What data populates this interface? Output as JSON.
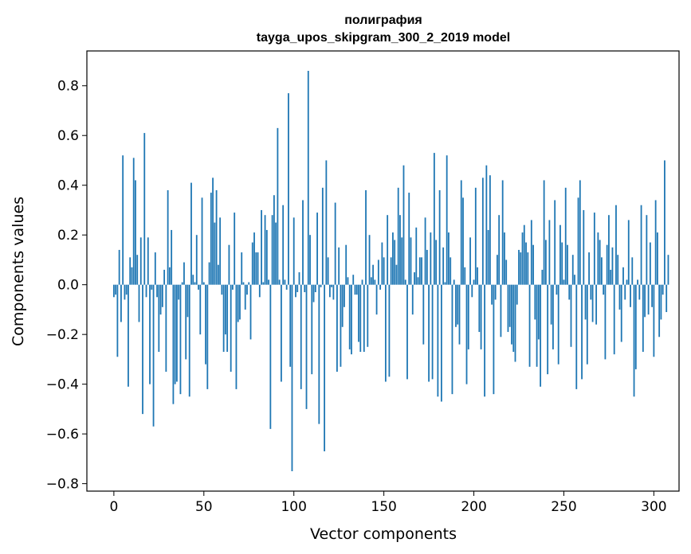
{
  "chart_data": {
    "type": "bar",
    "title_line1": "полиграфия",
    "title_line2": "tayga_upos_skipgram_300_2_2019 model",
    "xlabel": "Vector components",
    "ylabel": "Components values",
    "xlim": [
      -15,
      314
    ],
    "ylim": [
      -0.83,
      0.94
    ],
    "xticks": [
      0,
      50,
      100,
      150,
      200,
      250,
      300
    ],
    "xtick_labels": [
      "0",
      "50",
      "100",
      "150",
      "200",
      "250",
      "300"
    ],
    "yticks": [
      0.8,
      0.6,
      0.4,
      0.2,
      0.0,
      -0.2,
      -0.4,
      -0.6,
      -0.8
    ],
    "ytick_labels": [
      "0.8",
      "0.6",
      "0.4",
      "0.2",
      "0.0",
      "−0.2",
      "−0.4",
      "−0.6",
      "−0.8"
    ],
    "bar_color": "#1f77b4",
    "grid": false,
    "values": [
      -0.05,
      -0.04,
      -0.29,
      0.14,
      -0.15,
      0.52,
      -0.06,
      -0.04,
      -0.41,
      0.11,
      0.07,
      0.51,
      0.42,
      0.12,
      -0.15,
      0.19,
      -0.52,
      0.61,
      -0.05,
      0.19,
      -0.4,
      -0.02,
      -0.57,
      0.13,
      -0.05,
      -0.27,
      -0.12,
      -0.09,
      0.06,
      -0.35,
      0.38,
      0.07,
      0.22,
      -0.48,
      -0.4,
      -0.39,
      -0.06,
      -0.44,
      0.01,
      0.09,
      -0.3,
      -0.13,
      -0.45,
      0.41,
      0.04,
      0.01,
      0.2,
      -0.02,
      -0.2,
      0.35,
      0.01,
      -0.32,
      -0.42,
      0.09,
      0.37,
      0.43,
      0.25,
      0.38,
      0.08,
      0.27,
      -0.04,
      -0.27,
      -0.2,
      -0.27,
      0.16,
      -0.35,
      -0.02,
      0.29,
      -0.42,
      -0.15,
      -0.14,
      0.13,
      0.01,
      -0.1,
      -0.04,
      0.01,
      -0.22,
      0.17,
      0.21,
      0.13,
      0.13,
      -0.05,
      0.3,
      0.01,
      0.28,
      0.22,
      0.02,
      -0.58,
      0.28,
      0.36,
      0.25,
      0.63,
      0.02,
      -0.39,
      0.32,
      0.02,
      -0.02,
      0.77,
      -0.33,
      -0.75,
      0.27,
      -0.05,
      -0.03,
      0.05,
      -0.42,
      0.34,
      -0.03,
      -0.5,
      0.86,
      0.2,
      -0.36,
      -0.07,
      -0.03,
      0.29,
      -0.56,
      -0.01,
      0.39,
      -0.67,
      0.5,
      0.11,
      -0.05,
      -0.01,
      -0.06,
      0.33,
      -0.35,
      0.15,
      -0.33,
      -0.17,
      -0.09,
      0.16,
      0.03,
      -0.26,
      -0.28,
      0.04,
      -0.04,
      -0.04,
      -0.23,
      -0.27,
      0.02,
      -0.27,
      0.38,
      -0.25,
      0.2,
      0.03,
      0.08,
      0.02,
      -0.12,
      0.1,
      -0.02,
      0.17,
      0.11,
      -0.39,
      0.28,
      -0.37,
      0.11,
      0.21,
      0.18,
      0.08,
      0.39,
      0.28,
      0.19,
      0.48,
      0.02,
      -0.38,
      0.37,
      0.19,
      -0.12,
      0.05,
      0.23,
      0.03,
      0.11,
      0.11,
      -0.24,
      0.27,
      0.14,
      -0.39,
      0.21,
      -0.38,
      0.53,
      0.18,
      -0.45,
      0.38,
      -0.47,
      0.15,
      0.01,
      0.52,
      0.21,
      0.11,
      -0.44,
      0.02,
      -0.17,
      -0.16,
      -0.24,
      0.42,
      0.35,
      0.07,
      -0.4,
      -0.26,
      0.19,
      -0.05,
      0.02,
      0.39,
      0.07,
      -0.19,
      -0.26,
      0.43,
      -0.45,
      0.48,
      0.22,
      0.44,
      -0.08,
      -0.44,
      -0.06,
      0.12,
      0.28,
      -0.21,
      0.42,
      0.21,
      0.1,
      -0.19,
      -0.17,
      -0.24,
      -0.27,
      -0.31,
      -0.08,
      0.14,
      0.13,
      0.21,
      0.24,
      0.17,
      0.13,
      -0.33,
      0.26,
      0.16,
      -0.14,
      -0.33,
      -0.22,
      -0.41,
      0.06,
      0.42,
      0.18,
      -0.36,
      0.26,
      -0.16,
      -0.26,
      0.34,
      -0.04,
      -0.32,
      0.24,
      0.17,
      0.02,
      0.39,
      0.16,
      -0.06,
      -0.25,
      0.12,
      0.04,
      -0.42,
      0.35,
      0.42,
      -0.38,
      0.3,
      -0.14,
      -0.32,
      0.13,
      -0.06,
      -0.15,
      0.29,
      -0.16,
      0.21,
      0.18,
      0.11,
      -0.04,
      -0.3,
      0.16,
      0.28,
      0.06,
      0.15,
      -0.28,
      0.32,
      0.12,
      -0.1,
      -0.23,
      0.07,
      -0.06,
      0.02,
      0.26,
      -0.09,
      0.11,
      -0.45,
      -0.34,
      0.02,
      -0.06,
      0.32,
      -0.27,
      -0.13,
      0.28,
      -0.12,
      0.17,
      -0.09,
      -0.29,
      0.34,
      0.21,
      -0.21,
      -0.14,
      -0.04,
      0.5,
      -0.11,
      0.12
    ]
  }
}
